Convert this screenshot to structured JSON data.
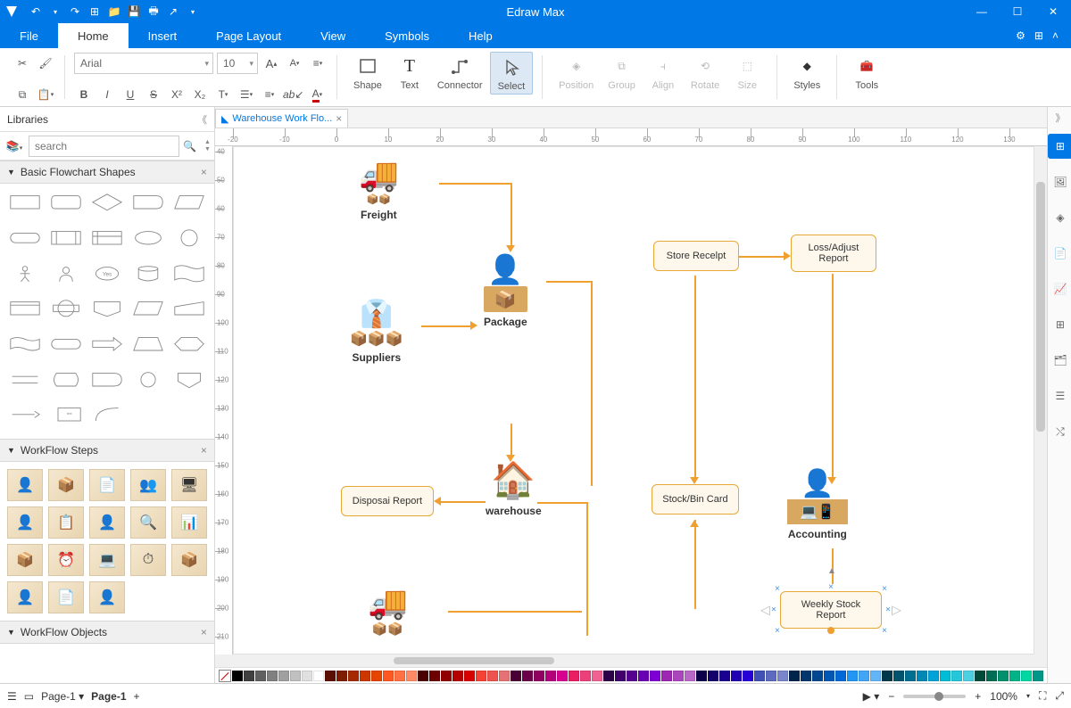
{
  "app": {
    "title": "Edraw Max"
  },
  "menu": {
    "tabs": [
      "File",
      "Home",
      "Insert",
      "Page Layout",
      "View",
      "Symbols",
      "Help"
    ],
    "active": 1
  },
  "ribbon": {
    "font_name": "Arial",
    "font_size": "10",
    "tools": {
      "shape": "Shape",
      "text": "Text",
      "connector": "Connector",
      "select": "Select",
      "position": "Position",
      "group": "Group",
      "align": "Align",
      "rotate": "Rotate",
      "size": "Size",
      "styles": "Styles",
      "tools_lbl": "Tools"
    }
  },
  "libraries": {
    "title": "Libraries",
    "search_placeholder": "search",
    "sections": {
      "basic": "Basic Flowchart Shapes",
      "steps": "WorkFlow Steps",
      "objects": "WorkFlow Objects"
    }
  },
  "doc": {
    "tab_title": "Warehouse Work Flo..."
  },
  "flowchart": {
    "nodes": {
      "freight": "Freight",
      "package": "Package",
      "suppliers": "Suppliers",
      "store_receipt": "Store Recelpt",
      "loss_adjust": "Loss/Adjust Report",
      "disposal": "Disposai Report",
      "warehouse": "warehouse",
      "stock_bin": "Stock/Bin Card",
      "accounting": "Accounting",
      "weekly": "Weekly Stock Report"
    },
    "colors": {
      "box_border": "#e8a838",
      "box_fill": "#fef8ec",
      "arrow": "#f0a030"
    }
  },
  "statusbar": {
    "page_label": "Page-1",
    "page_tab": "Page-1",
    "zoom": "100%"
  },
  "colors": [
    "#000000",
    "#404040",
    "#606060",
    "#808080",
    "#a0a0a0",
    "#c0c0c0",
    "#e0e0e0",
    "#ffffff",
    "#5b0f00",
    "#7f1d00",
    "#a52a00",
    "#cc3700",
    "#e64500",
    "#ff5722",
    "#ff7043",
    "#ff8a65",
    "#4a0000",
    "#6d0000",
    "#900000",
    "#b40000",
    "#d70000",
    "#f44336",
    "#ef5350",
    "#e57373",
    "#4a0034",
    "#6d004b",
    "#900062",
    "#b4007a",
    "#d70091",
    "#e91e63",
    "#ec407a",
    "#f06292",
    "#2d004a",
    "#41006d",
    "#560090",
    "#6a00b4",
    "#7f00d7",
    "#9c27b0",
    "#ab47bc",
    "#ba68c8",
    "#0d004a",
    "#14006d",
    "#1a0090",
    "#2100b4",
    "#2700d7",
    "#3f51b5",
    "#5c6bc0",
    "#7986cb",
    "#00254a",
    "#00366d",
    "#004790",
    "#0058b4",
    "#0069d7",
    "#2196f3",
    "#42a5f5",
    "#64b5f6",
    "#003a4a",
    "#00546d",
    "#006e90",
    "#0088b4",
    "#00a2d7",
    "#00bcd4",
    "#26c6da",
    "#4dd0e1",
    "#004a3a",
    "#006d54",
    "#00906e",
    "#00b488",
    "#00d7a2",
    "#009688",
    "#26a69a",
    "#4db6ac",
    "#0d4a00",
    "#146d00",
    "#1a9000",
    "#21b400",
    "#27d700",
    "#4caf50",
    "#66bb6a",
    "#81c784",
    "#2d4a00",
    "#416d00",
    "#569000",
    "#6ab400",
    "#7fd700",
    "#8bc34a",
    "#9ccc65",
    "#aed581",
    "#4a4a00",
    "#6d6d00",
    "#909000",
    "#b4b400",
    "#d7d700",
    "#cddc39",
    "#d4e157",
    "#dce775",
    "#4a3a00",
    "#6d5400",
    "#906e00",
    "#b48800",
    "#d7a200",
    "#ffeb3b",
    "#ffee58",
    "#fff176",
    "#4a2d00",
    "#6d4100",
    "#905600",
    "#b46a00",
    "#d77f00",
    "#ffc107",
    "#ffca28",
    "#ffd54f",
    "#4a1d00",
    "#6d2a00",
    "#903700",
    "#b44500",
    "#d75200",
    "#ff9800",
    "#ffa726",
    "#ffb74d"
  ]
}
